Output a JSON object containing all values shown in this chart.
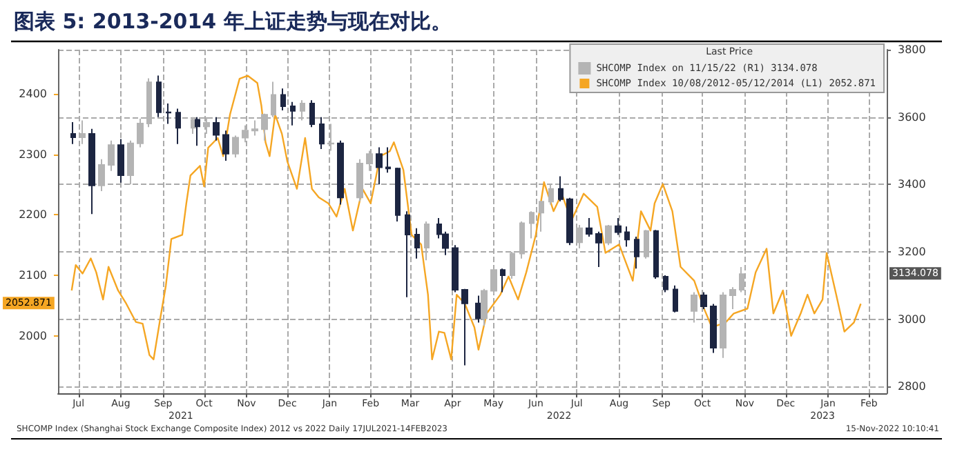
{
  "chart_data": {
    "type": "candlestick",
    "title": "图表 5: 2013-2014 年上证走势与现在对比。",
    "legend_title": "Last Price",
    "legend": "top right",
    "grid": true,
    "annotations": [
      "2052.871",
      "3134.078",
      "SHCOMP Index (Shanghai Stock Exchange Composite Index) 2012 vs 2022 Daily 17JUL2021-14FEB2023",
      "15-Nov-2022 10:10:41"
    ],
    "xlim": [
      "2021-07-01",
      "2023-02-28"
    ],
    "xticks": [
      {
        "value": "2021-07-16",
        "label": "Jul"
      },
      {
        "value": "2021-08-16",
        "label": "Aug"
      },
      {
        "value": "2021-09-16",
        "label": "Sep"
      },
      {
        "value": "2021-10-16",
        "label": "Oct"
      },
      {
        "value": "2021-11-16",
        "label": "Nov"
      },
      {
        "value": "2021-12-16",
        "label": "Dec"
      },
      {
        "value": "2022-01-16",
        "label": "Jan"
      },
      {
        "value": "2022-02-15",
        "label": "Feb"
      },
      {
        "value": "2022-03-16",
        "label": "Mar"
      },
      {
        "value": "2022-04-16",
        "label": "Apr"
      },
      {
        "value": "2022-05-16",
        "label": "May"
      },
      {
        "value": "2022-06-16",
        "label": "Jun"
      },
      {
        "value": "2022-07-16",
        "label": "Jul"
      },
      {
        "value": "2022-08-16",
        "label": "Aug"
      },
      {
        "value": "2022-09-16",
        "label": "Sep"
      },
      {
        "value": "2022-10-16",
        "label": "Oct"
      },
      {
        "value": "2022-11-16",
        "label": "Nov"
      },
      {
        "value": "2022-12-16",
        "label": "Dec"
      },
      {
        "value": "2023-01-16",
        "label": "Jan"
      },
      {
        "value": "2023-02-15",
        "label": "Feb"
      }
    ],
    "x2lim": [
      "2021-07-01",
      "2023-02-28"
    ],
    "x2ticks": [
      {
        "value": "2021-09-29",
        "label": "2021"
      },
      {
        "value": "2022-07-03",
        "label": "2022"
      },
      {
        "value": "2023-01-12",
        "label": "2023"
      }
    ],
    "ylim": [
      2780,
      3800
    ],
    "yticks": [
      2800,
      3000,
      3200,
      3400,
      3600,
      3800
    ],
    "y2lim": [
      1905,
      2473
    ],
    "y2ticks": [
      2000,
      2100,
      2200,
      2300,
      2400
    ],
    "series": [
      {
        "name": "SHCOMP Index on 11/15/22 (R1) 3134.078",
        "color": "#b4b4b4",
        "colors": [
          "#1c2541",
          "#b4b4b4",
          "#1c2541",
          "#b4b4b4",
          "#b4b4b4",
          "#1c2541",
          "#b4b4b4",
          "#b4b4b4",
          "#b4b4b4",
          "#1c2541",
          "#1c2541",
          "#1c2541",
          "#b4b4b4",
          "#1c2541",
          "#b4b4b4",
          "#1c2541",
          "#1c2541",
          "#b4b4b4",
          "#b4b4b4",
          "#b4b4b4",
          "#b4b4b4",
          "#b4b4b4",
          "#1c2541",
          "#1c2541",
          "#b4b4b4",
          "#1c2541",
          "#1c2541",
          "#b4b4b4",
          "#1c2541",
          "#b4b4b4",
          "#b4b4b4",
          "#1c2541",
          "#1c2541",
          "#1c2541",
          "#1c2541",
          "#1c2541",
          "#b4b4b4",
          "#1c2541",
          "#1c2541",
          "#1c2541",
          "#1c2541",
          "#1c2541",
          "#b4b4b4",
          "#b4b4b4",
          "#1c2541",
          "#b4b4b4",
          "#b4b4b4",
          "#b4b4b4",
          "#b4b4b4",
          "#b4b4b4",
          "#1c2541",
          "#1c2541",
          "#b4b4b4",
          "#1c2541",
          "#1c2541",
          "#b4b4b4",
          "#1c2541",
          "#1c2541",
          "#1c2541",
          "#b4b4b4",
          "#1c2541",
          "#1c2541",
          "#1c2541",
          "#b4b4b4",
          "#1c2541",
          "#1c2541",
          "#b4b4b4",
          "#b4b4b4",
          "#b4b4b4"
        ],
        "x": [
          "2021-07-12",
          "2021-07-19",
          "2021-07-26",
          "2021-08-02",
          "2021-08-09",
          "2021-08-16",
          "2021-08-23",
          "2021-08-30",
          "2021-09-06",
          "2021-09-13",
          "2021-09-20",
          "2021-09-27",
          "2021-10-08",
          "2021-10-11",
          "2021-10-18",
          "2021-10-25",
          "2021-11-01",
          "2021-11-08",
          "2021-11-15",
          "2021-11-22",
          "2021-11-29",
          "2021-12-06",
          "2021-12-13",
          "2021-12-20",
          "2021-12-27",
          "2022-01-03",
          "2022-01-10",
          "2022-01-17",
          "2022-01-24",
          "2022-02-07",
          "2022-02-14",
          "2022-02-21",
          "2022-02-28",
          "2022-03-07",
          "2022-03-14",
          "2022-03-21",
          "2022-03-28",
          "2022-04-06",
          "2022-04-11",
          "2022-04-18",
          "2022-04-25",
          "2022-05-05",
          "2022-05-09",
          "2022-05-16",
          "2022-05-23",
          "2022-05-30",
          "2022-06-06",
          "2022-06-13",
          "2022-06-20",
          "2022-06-27",
          "2022-07-04",
          "2022-07-11",
          "2022-07-18",
          "2022-07-25",
          "2022-08-01",
          "2022-08-08",
          "2022-08-15",
          "2022-08-22",
          "2022-08-29",
          "2022-09-05",
          "2022-09-12",
          "2022-09-19",
          "2022-09-26",
          "2022-10-10",
          "2022-10-17",
          "2022-10-24",
          "2022-10-31",
          "2022-11-07",
          "2022-11-14"
        ],
        "ohlc": [
          [
            3550,
            3585,
            3520,
            3540
          ],
          [
            3540,
            3590,
            3520,
            3550
          ],
          [
            3550,
            3565,
            3312,
            3397
          ],
          [
            3397,
            3475,
            3380,
            3458
          ],
          [
            3458,
            3530,
            3440,
            3517
          ],
          [
            3517,
            3535,
            3405,
            3427
          ],
          [
            3427,
            3530,
            3400,
            3522
          ],
          [
            3522,
            3595,
            3510,
            3581
          ],
          [
            3581,
            3715,
            3570,
            3703
          ],
          [
            3703,
            3723,
            3600,
            3614
          ],
          [
            3614,
            3640,
            3580,
            3613
          ],
          [
            3613,
            3625,
            3520,
            3568
          ],
          [
            3568,
            3600,
            3550,
            3592
          ],
          [
            3592,
            3600,
            3515,
            3572
          ],
          [
            3572,
            3600,
            3550,
            3583
          ],
          [
            3583,
            3600,
            3530,
            3547
          ],
          [
            3547,
            3560,
            3470,
            3491
          ],
          [
            3491,
            3545,
            3480,
            3539
          ],
          [
            3539,
            3575,
            3525,
            3560
          ],
          [
            3560,
            3590,
            3545,
            3564
          ],
          [
            3564,
            3610,
            3530,
            3607
          ],
          [
            3607,
            3705,
            3600,
            3666
          ],
          [
            3666,
            3685,
            3620,
            3632
          ],
          [
            3632,
            3645,
            3575,
            3618
          ],
          [
            3618,
            3650,
            3590,
            3640
          ],
          [
            3640,
            3650,
            3570,
            3579
          ],
          [
            3579,
            3600,
            3505,
            3521
          ],
          [
            3521,
            3580,
            3500,
            3522
          ],
          [
            3522,
            3530,
            3340,
            3361
          ],
          [
            3361,
            3475,
            3350,
            3462
          ],
          [
            3462,
            3500,
            3440,
            3490
          ],
          [
            3490,
            3510,
            3400,
            3451
          ],
          [
            3451,
            3510,
            3435,
            3447
          ],
          [
            3447,
            3450,
            3290,
            3309
          ],
          [
            3309,
            3320,
            3065,
            3251
          ],
          [
            3251,
            3270,
            3180,
            3212
          ],
          [
            3212,
            3290,
            3175,
            3282
          ],
          [
            3282,
            3300,
            3240,
            3252
          ],
          [
            3252,
            3260,
            3190,
            3211
          ],
          [
            3211,
            3220,
            3080,
            3087
          ],
          [
            3087,
            3090,
            2863,
            3047
          ],
          [
            3047,
            3070,
            2990,
            3002
          ],
          [
            3002,
            3090,
            2980,
            3084
          ],
          [
            3084,
            3150,
            3075,
            3146
          ],
          [
            3146,
            3150,
            3080,
            3130
          ],
          [
            3130,
            3200,
            3120,
            3195
          ],
          [
            3195,
            3290,
            3180,
            3285
          ],
          [
            3285,
            3320,
            3240,
            3316
          ],
          [
            3316,
            3350,
            3260,
            3349
          ],
          [
            3349,
            3400,
            3340,
            3387
          ],
          [
            3387,
            3424,
            3350,
            3356
          ],
          [
            3356,
            3360,
            3220,
            3228
          ],
          [
            3228,
            3280,
            3210,
            3270
          ],
          [
            3270,
            3300,
            3245,
            3253
          ],
          [
            3253,
            3260,
            3155,
            3227
          ],
          [
            3227,
            3280,
            3220,
            3276
          ],
          [
            3276,
            3300,
            3250,
            3258
          ],
          [
            3258,
            3275,
            3215,
            3236
          ],
          [
            3236,
            3245,
            3150,
            3186
          ],
          [
            3186,
            3265,
            3180,
            3262
          ],
          [
            3262,
            3265,
            3120,
            3126
          ],
          [
            3126,
            3130,
            3080,
            3088
          ],
          [
            3088,
            3100,
            3020,
            3024
          ],
          [
            3024,
            3080,
            2990,
            3071
          ],
          [
            3071,
            3080,
            3030,
            3038
          ],
          [
            3038,
            3045,
            2900,
            2915
          ],
          [
            2915,
            3080,
            2885,
            3071
          ],
          [
            3071,
            3095,
            3030,
            3087
          ],
          [
            3087,
            3155,
            3080,
            3134
          ]
        ]
      },
      {
        "type": "line",
        "name": "SHCOMP Index 10/08/2012-05/12/2014 (L1) 2052.871",
        "color": "#f5a623",
        "axis": "y2",
        "x": [
          "2021-07-11",
          "2021-07-14",
          "2021-07-19",
          "2021-07-25",
          "2021-07-29",
          "2021-08-03",
          "2021-08-07",
          "2021-08-14",
          "2021-08-20",
          "2021-08-27",
          "2021-09-01",
          "2021-09-06",
          "2021-09-09",
          "2021-09-14",
          "2021-09-18",
          "2021-09-22",
          "2021-09-30",
          "2021-10-03",
          "2021-10-06",
          "2021-10-13",
          "2021-10-16",
          "2021-10-19",
          "2021-10-26",
          "2021-10-30",
          "2021-11-04",
          "2021-11-11",
          "2021-11-17",
          "2021-11-24",
          "2021-11-27",
          "2021-11-30",
          "2021-12-03",
          "2021-12-07",
          "2021-12-12",
          "2021-12-16",
          "2021-12-23",
          "2021-12-29",
          "2022-01-03",
          "2022-01-08",
          "2022-01-15",
          "2022-01-21",
          "2022-01-27",
          "2022-02-02",
          "2022-02-09",
          "2022-02-15",
          "2022-02-22",
          "2022-03-01",
          "2022-03-04",
          "2022-03-11",
          "2022-03-17",
          "2022-03-24",
          "2022-03-29",
          "2022-04-01",
          "2022-04-06",
          "2022-04-10",
          "2022-04-15",
          "2022-04-19",
          "2022-04-25",
          "2022-05-02",
          "2022-05-05",
          "2022-05-11",
          "2022-05-21",
          "2022-05-27",
          "2022-06-03",
          "2022-06-09",
          "2022-06-16",
          "2022-06-22",
          "2022-06-29",
          "2022-07-05",
          "2022-07-12",
          "2022-07-21",
          "2022-07-31",
          "2022-08-06",
          "2022-08-16",
          "2022-08-26",
          "2022-09-01",
          "2022-09-08",
          "2022-09-11",
          "2022-09-17",
          "2022-09-24",
          "2022-09-30",
          "2022-10-10",
          "2022-10-17",
          "2022-10-23",
          "2022-11-02",
          "2022-11-08",
          "2022-11-18",
          "2022-11-24",
          "2022-12-02",
          "2022-12-07",
          "2022-12-14",
          "2022-12-20",
          "2022-12-27",
          "2023-01-01",
          "2023-01-06",
          "2023-01-12",
          "2023-01-15",
          "2023-01-22",
          "2023-01-28",
          "2023-02-04",
          "2023-02-09"
        ],
        "values": [
          2075,
          2117,
          2103,
          2128,
          2105,
          2060,
          2114,
          2075,
          2053,
          2023,
          2020,
          1968,
          1961,
          2030,
          2083,
          2160,
          2167,
          2219,
          2265,
          2281,
          2247,
          2311,
          2327,
          2297,
          2366,
          2425,
          2430,
          2418,
          2380,
          2320,
          2297,
          2366,
          2334,
          2288,
          2243,
          2327,
          2243,
          2229,
          2219,
          2197,
          2243,
          2174,
          2243,
          2219,
          2297,
          2305,
          2320,
          2274,
          2167,
          2151,
          2068,
          1961,
          2007,
          2005,
          1961,
          2068,
          2053,
          2014,
          1977,
          2037,
          2068,
          2098,
          2060,
          2105,
          2167,
          2254,
          2206,
          2235,
          2190,
          2235,
          2213,
          2137,
          2151,
          2091,
          2206,
          2174,
          2219,
          2251,
          2206,
          2114,
          2091,
          2046,
          2014,
          2022,
          2037,
          2045,
          2105,
          2144,
          2037,
          2075,
          2000,
          2037,
          2068,
          2037,
          2060,
          2137,
          2068,
          2007,
          2022,
          2053
        ]
      }
    ]
  }
}
